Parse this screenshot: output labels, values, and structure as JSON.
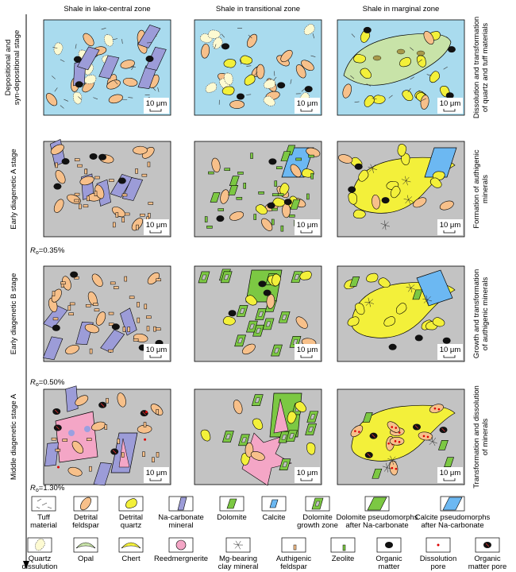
{
  "columns": [
    "Shale in lake-central zone",
    "Shale in transitional zone",
    "Shale in marginal zone"
  ],
  "stages": [
    [
      "Depositional and",
      "syn-depositional stage"
    ],
    [
      "Early diagenetic A stage"
    ],
    [
      "Early diagenetic B stage"
    ],
    [
      "Middle diagenetic stage A"
    ]
  ],
  "ro_markers": [
    {
      "symbol": "R",
      "subscript": "o",
      "value": "=0.35%"
    },
    {
      "symbol": "R",
      "subscript": "o",
      "value": "=0.50%"
    },
    {
      "symbol": "R",
      "subscript": "o",
      "value": "=1.30%"
    }
  ],
  "processes": [
    [
      "Dissolution and transformation",
      "of quartz and tuff materials"
    ],
    [
      "Formation of authigenic",
      "minerals"
    ],
    [
      "Growth and transformation",
      "of authigenic minerals"
    ],
    [
      "Transformation and dissolution",
      "of minerals"
    ]
  ],
  "scale_bar": "10 μm",
  "legend": {
    "row1": [
      [
        "Tuff",
        "material"
      ],
      [
        "Detrital",
        "feldspar"
      ],
      [
        "Detrital",
        "quartz"
      ],
      [
        "Na-carbonate",
        "mineral"
      ],
      [
        "Dolomite"
      ],
      [
        "Calcite"
      ],
      [
        "Dolomite",
        "growth zone"
      ],
      [
        "Dolomite pseudomorphs",
        "after Na-carbonate"
      ],
      [
        "Calcite pseudomorphs",
        "after Na-carbonate"
      ]
    ],
    "row2": [
      [
        "Quartz",
        "dissulution"
      ],
      [
        "Opal"
      ],
      [
        "Chert"
      ],
      [
        "Reedmergnerite"
      ],
      [
        "Mg-bearing",
        "clay mineral"
      ],
      [
        "Authigenic",
        "feldspar"
      ],
      [
        "Zeolite"
      ],
      [
        "Organic",
        "matter"
      ],
      [
        "Dissolution",
        "pore"
      ],
      [
        "Organic",
        "matter pore"
      ]
    ]
  }
}
